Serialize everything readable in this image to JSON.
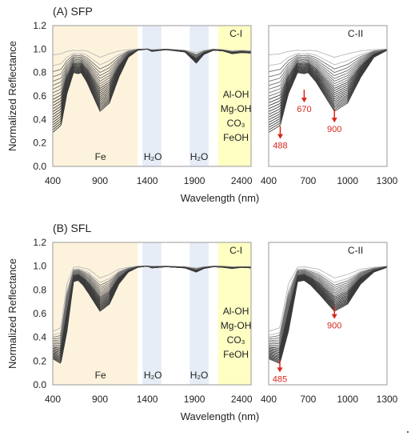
{
  "figure": {
    "panels": [
      {
        "label": "(A) SFP",
        "ylabel": "Normalized Reflectance",
        "xlabel": "Wavelength (nm)",
        "sub_c1": "C-I",
        "sub_c2": "C-II",
        "region_labels": [
          "Fe",
          "H₂O",
          "H₂O"
        ],
        "c1_region_text": [
          "Al-OH",
          "Mg-OH",
          "CO₃",
          "FeOH"
        ],
        "arrows": [
          {
            "label": "488",
            "x": 488,
            "y": 0.33
          },
          {
            "label": "670",
            "x": 670,
            "y": 0.64
          },
          {
            "label": "900",
            "x": 900,
            "y": 0.47
          }
        ]
      },
      {
        "label": "(B) SFL",
        "ylabel": "Normalized Reflectance",
        "xlabel": "Wavelength (nm)",
        "sub_c1": "C-I",
        "sub_c2": "C-II",
        "region_labels": [
          "Fe",
          "H₂O",
          "H₂O"
        ],
        "c1_region_text": [
          "Al-OH",
          "Mg-OH",
          "CO₃",
          "FeOH"
        ],
        "arrows": [
          {
            "label": "900",
            "x": 900,
            "y": 0.65
          },
          {
            "label": "485",
            "x": 485,
            "y": 0.2
          }
        ]
      }
    ]
  },
  "chart_data": [
    {
      "type": "line",
      "panel": "(A) SFP",
      "subplot": "C-I",
      "xlabel": "Wavelength (nm)",
      "ylabel": "Normalized Reflectance",
      "xlim": [
        400,
        2500
      ],
      "ylim": [
        0.0,
        1.2
      ],
      "xticks": [
        400,
        900,
        1400,
        1900,
        2400
      ],
      "yticks": [
        0.0,
        0.2,
        0.4,
        0.6,
        0.8,
        1.0,
        1.2
      ],
      "shaded_regions": [
        {
          "label": "Fe",
          "x": [
            400,
            1300
          ],
          "color": "#fdf3dd"
        },
        {
          "label": "H₂O",
          "x": [
            1350,
            1550
          ],
          "color": "#e6edf7"
        },
        {
          "label": "H₂O",
          "x": [
            1850,
            2050
          ],
          "color": "#e6edf7"
        },
        {
          "label": "Al-OH Mg-OH CO₃ FeOH",
          "x": [
            2150,
            2500
          ],
          "color": "#ffffc4"
        }
      ],
      "envelope": {
        "x": [
          400,
          488,
          550,
          620,
          670,
          700,
          760,
          900,
          1000,
          1100,
          1200,
          1300,
          1400,
          1450,
          1600,
          1800,
          1920,
          2000,
          2100,
          2200,
          2300,
          2400,
          2500
        ],
        "y_min": [
          0.29,
          0.35,
          0.62,
          0.8,
          0.79,
          0.8,
          0.72,
          0.47,
          0.54,
          0.76,
          0.93,
          0.99,
          1.0,
          0.98,
          0.995,
          0.975,
          0.88,
          0.955,
          0.99,
          0.985,
          0.96,
          0.97,
          0.965
        ],
        "y_max": [
          0.95,
          0.96,
          0.98,
          0.99,
          0.985,
          0.99,
          0.985,
          0.93,
          0.96,
          0.985,
          0.995,
          1.0,
          1.0,
          0.995,
          1.0,
          0.99,
          0.97,
          0.99,
          1.0,
          0.995,
          0.985,
          0.99,
          0.985
        ]
      }
    },
    {
      "type": "line",
      "panel": "(A) SFP",
      "subplot": "C-II",
      "xlabel": "Wavelength (nm)",
      "ylabel": "Normalized Reflectance",
      "xlim": [
        400,
        1300
      ],
      "ylim": [
        0.0,
        1.2
      ],
      "xticks": [
        400,
        700,
        1000,
        1300
      ],
      "yticks": [
        0.0,
        0.2,
        0.4,
        0.6,
        0.8,
        1.0,
        1.2
      ],
      "annotations": [
        {
          "label": "488",
          "x": 488,
          "y": 0.33
        },
        {
          "label": "670",
          "x": 670,
          "y": 0.64
        },
        {
          "label": "900",
          "x": 900,
          "y": 0.47
        }
      ]
    },
    {
      "type": "line",
      "panel": "(B) SFL",
      "subplot": "C-I",
      "xlabel": "Wavelength (nm)",
      "ylabel": "Normalized Reflectance",
      "xlim": [
        400,
        2500
      ],
      "ylim": [
        0.0,
        1.2
      ],
      "xticks": [
        400,
        900,
        1400,
        1900,
        2400
      ],
      "yticks": [
        0.0,
        0.2,
        0.4,
        0.6,
        0.8,
        1.0,
        1.2
      ],
      "shaded_regions": [
        {
          "label": "Fe",
          "x": [
            400,
            1300
          ],
          "color": "#fdf3dd"
        },
        {
          "label": "H₂O",
          "x": [
            1350,
            1550
          ],
          "color": "#e6edf7"
        },
        {
          "label": "H₂O",
          "x": [
            1850,
            2050
          ],
          "color": "#e6edf7"
        },
        {
          "label": "Al-OH Mg-OH CO₃ FeOH",
          "x": [
            2150,
            2500
          ],
          "color": "#ffffc4"
        }
      ],
      "envelope": {
        "x": [
          400,
          485,
          550,
          620,
          670,
          720,
          780,
          900,
          1000,
          1100,
          1200,
          1300,
          1400,
          1450,
          1600,
          1800,
          1920,
          2000,
          2100,
          2200,
          2300,
          2400,
          2500
        ],
        "y_min": [
          0.22,
          0.18,
          0.45,
          0.87,
          0.88,
          0.84,
          0.77,
          0.62,
          0.68,
          0.85,
          0.95,
          0.99,
          1.0,
          0.985,
          0.995,
          0.985,
          0.95,
          0.98,
          0.995,
          0.99,
          0.98,
          0.99,
          0.985
        ],
        "y_max": [
          0.45,
          0.48,
          0.85,
          0.99,
          0.995,
          0.985,
          0.975,
          0.9,
          0.93,
          0.975,
          0.99,
          1.0,
          1.0,
          1.0,
          1.0,
          0.995,
          0.985,
          0.995,
          1.0,
          1.0,
          0.995,
          0.995,
          0.995
        ]
      }
    },
    {
      "type": "line",
      "panel": "(B) SFL",
      "subplot": "C-II",
      "xlabel": "Wavelength (nm)",
      "ylabel": "Normalized Reflectance",
      "xlim": [
        400,
        1300
      ],
      "ylim": [
        0.0,
        1.2
      ],
      "xticks": [
        400,
        700,
        1000,
        1300
      ],
      "yticks": [
        0.0,
        0.2,
        0.4,
        0.6,
        0.8,
        1.0,
        1.2
      ],
      "annotations": [
        {
          "label": "900",
          "x": 900,
          "y": 0.65
        },
        {
          "label": "485",
          "x": 485,
          "y": 0.2
        }
      ]
    }
  ]
}
